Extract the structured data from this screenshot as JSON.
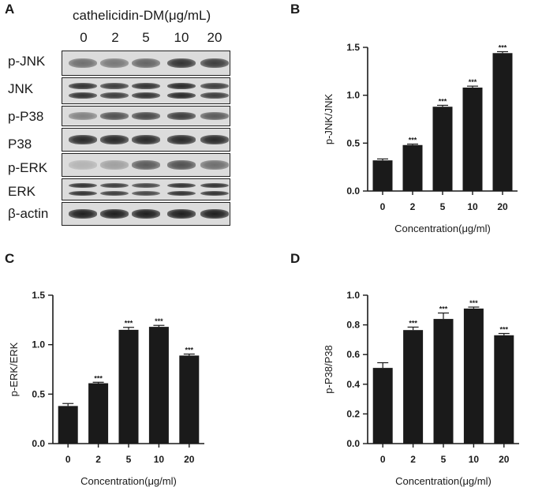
{
  "panel_letters": {
    "a": "A",
    "b": "B",
    "c": "C",
    "d": "D"
  },
  "blot": {
    "title": "cathelicidin-DM(μg/mL)",
    "lanes": [
      "0",
      "2",
      "5",
      "10",
      "20"
    ],
    "rows": [
      {
        "label": "p-JNK",
        "intensity": [
          0.55,
          0.5,
          0.6,
          0.85,
          0.8
        ]
      },
      {
        "label": "JNK",
        "intensity": [
          0.85,
          0.8,
          0.85,
          0.9,
          0.8
        ]
      },
      {
        "label": "p-P38",
        "intensity": [
          0.45,
          0.7,
          0.75,
          0.8,
          0.65
        ]
      },
      {
        "label": "P38",
        "intensity": [
          0.9,
          0.9,
          0.9,
          0.9,
          0.9
        ]
      },
      {
        "label": "p-ERK",
        "intensity": [
          0.2,
          0.3,
          0.65,
          0.7,
          0.55
        ]
      },
      {
        "label": "ERK",
        "intensity": [
          0.85,
          0.8,
          0.75,
          0.85,
          0.85
        ]
      },
      {
        "label": "β-actin",
        "intensity": [
          0.95,
          0.95,
          0.95,
          0.95,
          0.95
        ]
      }
    ]
  },
  "chart_data": [
    {
      "panel": "B",
      "type": "bar",
      "categories": [
        "0",
        "2",
        "5",
        "10",
        "20"
      ],
      "values": [
        0.32,
        0.48,
        0.88,
        1.08,
        1.44
      ],
      "errors": [
        0.015,
        0.01,
        0.015,
        0.015,
        0.015
      ],
      "significance": [
        "",
        "***",
        "***",
        "***",
        "***"
      ],
      "xlabel": "Concentration(μg/ml)",
      "ylabel": "p-JNK/JNK",
      "ylim": [
        0,
        1.5
      ],
      "yticks": [
        "0.0",
        "0.5",
        "1.0",
        "1.5"
      ],
      "bar_color": "#1a1a1a"
    },
    {
      "panel": "C",
      "type": "bar",
      "categories": [
        "0",
        "2",
        "5",
        "10",
        "20"
      ],
      "values": [
        0.38,
        0.61,
        1.15,
        1.18,
        0.89
      ],
      "errors": [
        0.025,
        0.01,
        0.025,
        0.015,
        0.015
      ],
      "significance": [
        "",
        "***",
        "***",
        "***",
        "***"
      ],
      "xlabel": "Concentration(μg/ml)",
      "ylabel": "p-ERK/ERK",
      "ylim": [
        0,
        1.5
      ],
      "yticks": [
        "0.0",
        "0.5",
        "1.0",
        "1.5"
      ],
      "bar_color": "#1a1a1a"
    },
    {
      "panel": "D",
      "type": "bar",
      "categories": [
        "0",
        "2",
        "5",
        "10",
        "20"
      ],
      "values": [
        0.51,
        0.765,
        0.84,
        0.91,
        0.73
      ],
      "errors": [
        0.035,
        0.02,
        0.04,
        0.01,
        0.012
      ],
      "significance": [
        "",
        "***",
        "***",
        "***",
        "***"
      ],
      "xlabel": "Concentration(μg/ml)",
      "ylabel": "p-P38/P38",
      "ylim": [
        0,
        1.0
      ],
      "yticks": [
        "0.0",
        "0.2",
        "0.4",
        "0.6",
        "0.8",
        "1.0"
      ],
      "bar_color": "#1a1a1a"
    }
  ]
}
